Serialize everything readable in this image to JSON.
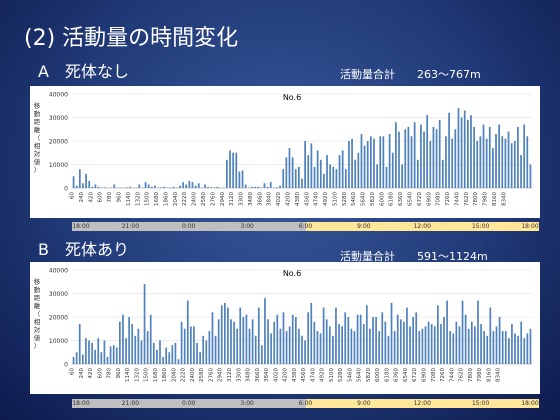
{
  "slide": {
    "title": "(2) 活動量の時間変化",
    "sections": [
      {
        "label": "A　死体なし",
        "summary_label": "活動量合計",
        "summary_range": "263〜767m"
      },
      {
        "label": "B　死体あり",
        "summary_label": "活動量合計",
        "summary_range": "591〜1124m"
      }
    ]
  },
  "timebar": {
    "labels": [
      "18:00",
      "21:00",
      "0:00",
      "3:00",
      "6:00",
      "9:00",
      "12:00",
      "15:00",
      "18:00"
    ],
    "colors": {
      "night": "#bfbfbf",
      "day": "#ffe699",
      "divider": "#ffffff"
    }
  },
  "chart_data": [
    {
      "type": "bar",
      "title": "No.6",
      "ylabel": "移動距離（相対値）",
      "ylim": [
        0,
        40000
      ],
      "yticks": [
        0,
        10000,
        20000,
        30000,
        40000
      ],
      "xticks": [
        "60",
        "240",
        "420",
        "600",
        "780",
        "960",
        "1140",
        "1320",
        "1500",
        "1680",
        "1860",
        "2040",
        "2220",
        "2400",
        "2580",
        "2760",
        "2940",
        "3120",
        "3300",
        "3480",
        "3660",
        "3840",
        "4020",
        "4200",
        "4380",
        "4560",
        "4740",
        "4920",
        "5100",
        "5280",
        "5460",
        "5640",
        "5820",
        "6000",
        "6180",
        "6360",
        "6540",
        "6720",
        "6900",
        "7080",
        "7260",
        "7440",
        "7620",
        "7800",
        "7980",
        "8160",
        "8340"
      ],
      "x_start": 60,
      "x_step": 60,
      "bar_color": "#4f81bd",
      "values": [
        5000,
        1000,
        8000,
        2000,
        6000,
        3000,
        500,
        1500,
        500,
        200,
        300,
        100,
        200,
        1500,
        100,
        200,
        100,
        300,
        500,
        100,
        200,
        1500,
        100,
        2500,
        1500,
        500,
        1000,
        200,
        300,
        500,
        100,
        200,
        500,
        200,
        1000,
        2500,
        1500,
        3000,
        2500,
        1000,
        2000,
        200,
        1500,
        500,
        300,
        200,
        500,
        100,
        200,
        12000,
        16000,
        15000,
        15000,
        7000,
        7500,
        1500,
        200,
        500,
        500,
        500,
        200,
        2000,
        500,
        2500,
        200,
        300,
        1000,
        8000,
        13000,
        17000,
        13000,
        8000,
        9000,
        4000,
        20000,
        14000,
        19000,
        9000,
        16000,
        12000,
        6000,
        14000,
        10000,
        9000,
        8000,
        14000,
        16000,
        8000,
        20000,
        21000,
        12000,
        15000,
        23000,
        18000,
        20000,
        22000,
        21000,
        10000,
        22000,
        22000,
        9000,
        23000,
        15000,
        28000,
        24000,
        10000,
        25000,
        26000,
        22000,
        28000,
        12000,
        27000,
        24000,
        31000,
        20000,
        26000,
        25000,
        29000,
        12000,
        22000,
        32000,
        21000,
        25000,
        34000,
        30000,
        33000,
        29000,
        31000,
        26000,
        20000,
        22000,
        27000,
        21000,
        26000,
        17000,
        23000,
        27000,
        22000,
        21000,
        24000,
        19000,
        20000,
        26000,
        14000,
        27000,
        22000,
        10000
      ]
    },
    {
      "type": "bar",
      "title": "No.6",
      "ylabel": "移動距離（相対値）",
      "ylim": [
        0,
        40000
      ],
      "yticks": [
        0,
        10000,
        20000,
        30000,
        40000
      ],
      "xticks": [
        "60",
        "240",
        "420",
        "600",
        "780",
        "960",
        "1140",
        "1320",
        "1500",
        "1680",
        "1860",
        "2040",
        "2220",
        "2400",
        "2580",
        "2760",
        "2940",
        "3120",
        "3300",
        "3480",
        "3660",
        "3840",
        "4020",
        "4200",
        "4380",
        "4560",
        "4740",
        "4920",
        "5100",
        "5280",
        "5460",
        "5640",
        "5820",
        "6000",
        "6180",
        "6360",
        "6540",
        "6720",
        "6900",
        "7080",
        "7260",
        "7440",
        "7620",
        "7800",
        "7980",
        "8160",
        "8340"
      ],
      "x_start": 60,
      "x_step": 60,
      "bar_color": "#4f81bd",
      "values": [
        3000,
        5000,
        17000,
        4000,
        11000,
        10000,
        9000,
        6000,
        11000,
        5000,
        10000,
        3000,
        7500,
        8000,
        7000,
        18000,
        21000,
        11000,
        20000,
        17000,
        12000,
        15000,
        10000,
        34000,
        14000,
        21000,
        9000,
        6000,
        10000,
        3000,
        7000,
        5000,
        8000,
        9000,
        2000,
        18000,
        15000,
        27000,
        16000,
        16000,
        9000,
        5000,
        12000,
        10000,
        14000,
        22000,
        12000,
        19000,
        25000,
        26000,
        24000,
        19000,
        18000,
        15000,
        24000,
        20000,
        21000,
        15000,
        19000,
        12000,
        24000,
        8000,
        28000,
        19000,
        13000,
        18000,
        21000,
        15000,
        22000,
        14000,
        16000,
        21000,
        20000,
        15000,
        12000,
        10000,
        22000,
        26000,
        18000,
        14000,
        13000,
        24000,
        19000,
        16000,
        12000,
        24000,
        17000,
        16000,
        22000,
        20000,
        15000,
        14000,
        21000,
        21000,
        17000,
        25000,
        15000,
        20000,
        20000,
        14000,
        22000,
        18000,
        12000,
        26000,
        14000,
        21000,
        19000,
        18000,
        24000,
        16000,
        20000,
        22000,
        14000,
        15000,
        16000,
        18000,
        17000,
        16000,
        25000,
        17000,
        20000,
        27000,
        14000,
        13000,
        18000,
        16000,
        27000,
        21000,
        15000,
        18000,
        16000,
        27000,
        17000,
        14000,
        12000,
        24000,
        14000,
        16000,
        20000,
        14000,
        14000,
        11000,
        17000,
        13000,
        12000,
        18000,
        11000,
        13000,
        15000
      ]
    }
  ]
}
